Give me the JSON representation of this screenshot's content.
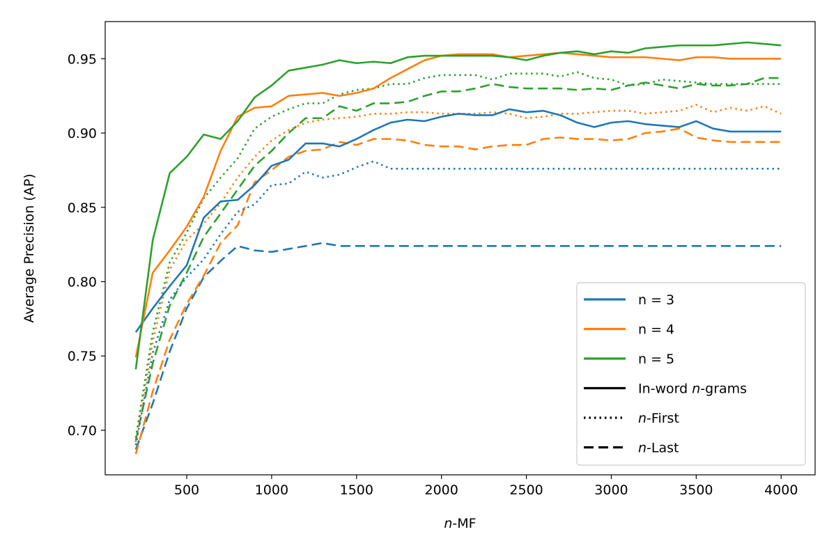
{
  "chart_data": {
    "type": "line",
    "title": "",
    "xlabel_italic": "n",
    "xlabel_rest": "-MF",
    "ylabel": "Average Precision (AP)",
    "xlim": [
      20,
      4200
    ],
    "ylim": [
      0.67,
      0.975
    ],
    "xticks": [
      500,
      1000,
      1500,
      2000,
      2500,
      3000,
      3500,
      4000
    ],
    "yticks": [
      0.7,
      0.75,
      0.8,
      0.85,
      0.9,
      0.95
    ],
    "ytick_labels": [
      "0.70",
      "0.75",
      "0.80",
      "0.85",
      "0.90",
      "0.95"
    ],
    "legend_position": "lower-right",
    "x": [
      200,
      300,
      400,
      500,
      600,
      700,
      800,
      900,
      1000,
      1100,
      1200,
      1300,
      1400,
      1500,
      1600,
      1700,
      1800,
      1900,
      2000,
      2100,
      2200,
      2300,
      2400,
      2500,
      2600,
      2700,
      2800,
      2900,
      3000,
      3100,
      3200,
      3300,
      3400,
      3500,
      3600,
      3700,
      3800,
      3900,
      4000
    ],
    "series": [
      {
        "name": "n = 3",
        "n": 3,
        "style": "solid",
        "color": "#1f77b4",
        "values": [
          0.766,
          0.782,
          0.797,
          0.811,
          0.843,
          0.854,
          0.855,
          0.865,
          0.878,
          0.882,
          0.893,
          0.893,
          0.891,
          0.896,
          0.902,
          0.907,
          0.909,
          0.908,
          0.911,
          0.913,
          0.912,
          0.912,
          0.916,
          0.914,
          0.915,
          0.912,
          0.907,
          0.904,
          0.907,
          0.908,
          0.906,
          0.905,
          0.904,
          0.908,
          0.903,
          0.901,
          0.901,
          0.901,
          0.901
        ]
      },
      {
        "name": "n = 4",
        "n": 4,
        "style": "solid",
        "color": "#ff7f0e",
        "values": [
          0.749,
          0.806,
          0.821,
          0.837,
          0.857,
          0.888,
          0.911,
          0.917,
          0.918,
          0.925,
          0.926,
          0.927,
          0.925,
          0.927,
          0.93,
          0.937,
          0.943,
          0.949,
          0.952,
          0.953,
          0.953,
          0.953,
          0.951,
          0.952,
          0.953,
          0.954,
          0.953,
          0.952,
          0.951,
          0.951,
          0.951,
          0.95,
          0.949,
          0.951,
          0.951,
          0.95,
          0.95,
          0.95,
          0.95
        ]
      },
      {
        "name": "n = 5",
        "n": 5,
        "style": "solid",
        "color": "#2ca02c",
        "values": [
          0.741,
          0.828,
          0.873,
          0.884,
          0.899,
          0.896,
          0.908,
          0.924,
          0.932,
          0.942,
          0.944,
          0.946,
          0.949,
          0.947,
          0.948,
          0.947,
          0.951,
          0.952,
          0.952,
          0.952,
          0.952,
          0.952,
          0.951,
          0.949,
          0.952,
          0.954,
          0.955,
          0.953,
          0.955,
          0.954,
          0.957,
          0.958,
          0.959,
          0.959,
          0.959,
          0.96,
          0.961,
          0.96,
          0.959
        ]
      },
      {
        "name": "",
        "n": 3,
        "style": "dotted",
        "color": "#1f77b4",
        "values": [
          0.69,
          0.752,
          0.788,
          0.803,
          0.815,
          0.832,
          0.847,
          0.852,
          0.865,
          0.866,
          0.874,
          0.87,
          0.872,
          0.877,
          0.881,
          0.876,
          0.876,
          0.876,
          0.876,
          0.876,
          0.876,
          0.876,
          0.876,
          0.876,
          0.876,
          0.876,
          0.876,
          0.876,
          0.876,
          0.876,
          0.876,
          0.876,
          0.876,
          0.876,
          0.876,
          0.876,
          0.876,
          0.876,
          0.876
        ]
      },
      {
        "name": "",
        "n": 4,
        "style": "dotted",
        "color": "#ff7f0e",
        "values": [
          0.692,
          0.76,
          0.808,
          0.828,
          0.839,
          0.853,
          0.87,
          0.884,
          0.895,
          0.902,
          0.907,
          0.909,
          0.91,
          0.911,
          0.913,
          0.913,
          0.914,
          0.914,
          0.913,
          0.913,
          0.913,
          0.914,
          0.913,
          0.91,
          0.911,
          0.913,
          0.913,
          0.914,
          0.915,
          0.915,
          0.913,
          0.914,
          0.915,
          0.919,
          0.914,
          0.917,
          0.915,
          0.918,
          0.913
        ]
      },
      {
        "name": "",
        "n": 5,
        "style": "dotted",
        "color": "#2ca02c",
        "values": [
          0.695,
          0.766,
          0.813,
          0.833,
          0.856,
          0.87,
          0.883,
          0.903,
          0.911,
          0.916,
          0.92,
          0.92,
          0.926,
          0.929,
          0.93,
          0.933,
          0.933,
          0.937,
          0.939,
          0.939,
          0.939,
          0.936,
          0.94,
          0.94,
          0.94,
          0.938,
          0.941,
          0.937,
          0.936,
          0.932,
          0.933,
          0.936,
          0.935,
          0.934,
          0.933,
          0.933,
          0.933,
          0.933,
          0.933
        ]
      },
      {
        "name": "",
        "n": 3,
        "style": "dashed",
        "color": "#1f77b4",
        "values": [
          0.687,
          0.718,
          0.753,
          0.782,
          0.803,
          0.814,
          0.824,
          0.821,
          0.82,
          0.822,
          0.824,
          0.826,
          0.824,
          0.824,
          0.824,
          0.824,
          0.824,
          0.824,
          0.824,
          0.824,
          0.824,
          0.824,
          0.824,
          0.824,
          0.824,
          0.824,
          0.824,
          0.824,
          0.824,
          0.824,
          0.824,
          0.824,
          0.824,
          0.824,
          0.824,
          0.824,
          0.824,
          0.824,
          0.824
        ]
      },
      {
        "name": "",
        "n": 4,
        "style": "dashed",
        "color": "#ff7f0e",
        "values": [
          0.684,
          0.726,
          0.761,
          0.785,
          0.804,
          0.826,
          0.838,
          0.867,
          0.875,
          0.884,
          0.888,
          0.889,
          0.894,
          0.892,
          0.896,
          0.896,
          0.895,
          0.892,
          0.891,
          0.891,
          0.889,
          0.891,
          0.892,
          0.892,
          0.896,
          0.897,
          0.896,
          0.896,
          0.895,
          0.896,
          0.9,
          0.901,
          0.903,
          0.897,
          0.895,
          0.894,
          0.894,
          0.894,
          0.894
        ]
      },
      {
        "name": "",
        "n": 5,
        "style": "dashed",
        "color": "#2ca02c",
        "values": [
          0.693,
          0.745,
          0.784,
          0.806,
          0.83,
          0.846,
          0.862,
          0.878,
          0.888,
          0.9,
          0.91,
          0.91,
          0.918,
          0.915,
          0.92,
          0.92,
          0.921,
          0.925,
          0.928,
          0.928,
          0.93,
          0.933,
          0.931,
          0.93,
          0.93,
          0.93,
          0.929,
          0.93,
          0.929,
          0.932,
          0.934,
          0.932,
          0.93,
          0.933,
          0.932,
          0.932,
          0.933,
          0.937,
          0.937
        ]
      }
    ],
    "legend": [
      {
        "label": "n = 3",
        "color": "#1f77b4",
        "style": "solid"
      },
      {
        "label": "n = 4",
        "color": "#ff7f0e",
        "style": "solid"
      },
      {
        "label": "n = 5",
        "color": "#2ca02c",
        "style": "solid"
      },
      {
        "label": "In-word n-grams",
        "italic": "n",
        "before": "In-word ",
        "after": "-grams",
        "color": "#000000",
        "style": "solid"
      },
      {
        "label": "n-First",
        "italic": "n",
        "before": "",
        "after": "-First",
        "color": "#000000",
        "style": "dotted"
      },
      {
        "label": "n-Last",
        "italic": "n",
        "before": "",
        "after": "-Last",
        "color": "#000000",
        "style": "dashed"
      }
    ]
  }
}
